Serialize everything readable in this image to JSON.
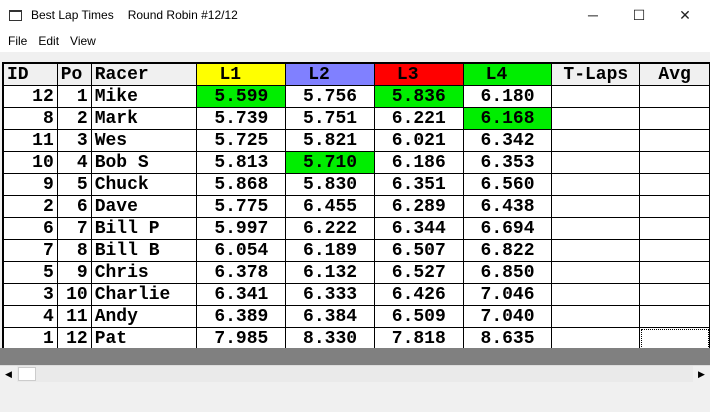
{
  "window": {
    "title": "Best Lap Times",
    "subtitle": "Round Robin #12/12",
    "minimize": "─",
    "maximize": "☐",
    "close": "✕"
  },
  "menu": [
    "File",
    "Edit",
    "View"
  ],
  "colors": {
    "L1": "#ffff00",
    "L2": "#8080ff",
    "L3": "#ff0000",
    "L4": "#00ee00",
    "best": "#00ee00"
  },
  "columns": [
    "ID",
    "Po",
    "Racer",
    "L1",
    "L2",
    "L3",
    "L4",
    "T-Laps",
    "Avg"
  ],
  "rows": [
    {
      "id": "12",
      "pos": "1",
      "racer": "Mike",
      "laps": [
        "5.599",
        "5.756",
        "5.836",
        "6.180"
      ],
      "best": [
        0,
        2
      ]
    },
    {
      "id": "8",
      "pos": "2",
      "racer": "Mark",
      "laps": [
        "5.739",
        "5.751",
        "6.221",
        "6.168"
      ],
      "best": [
        3
      ]
    },
    {
      "id": "11",
      "pos": "3",
      "racer": "Wes",
      "laps": [
        "5.725",
        "5.821",
        "6.021",
        "6.342"
      ],
      "best": []
    },
    {
      "id": "10",
      "pos": "4",
      "racer": "Bob S",
      "laps": [
        "5.813",
        "5.710",
        "6.186",
        "6.353"
      ],
      "best": [
        1
      ]
    },
    {
      "id": "9",
      "pos": "5",
      "racer": "Chuck",
      "laps": [
        "5.868",
        "5.830",
        "6.351",
        "6.560"
      ],
      "best": []
    },
    {
      "id": "2",
      "pos": "6",
      "racer": "Dave",
      "laps": [
        "5.775",
        "6.455",
        "6.289",
        "6.438"
      ],
      "best": []
    },
    {
      "id": "6",
      "pos": "7",
      "racer": "Bill P",
      "laps": [
        "5.997",
        "6.222",
        "6.344",
        "6.694"
      ],
      "best": []
    },
    {
      "id": "7",
      "pos": "8",
      "racer": "Bill B",
      "laps": [
        "6.054",
        "6.189",
        "6.507",
        "6.822"
      ],
      "best": []
    },
    {
      "id": "5",
      "pos": "9",
      "racer": "Chris",
      "laps": [
        "6.378",
        "6.132",
        "6.527",
        "6.850"
      ],
      "best": []
    },
    {
      "id": "3",
      "pos": "10",
      "racer": "Charlie",
      "laps": [
        "6.341",
        "6.333",
        "6.426",
        "7.046"
      ],
      "best": []
    },
    {
      "id": "4",
      "pos": "11",
      "racer": "Andy",
      "laps": [
        "6.389",
        "6.384",
        "6.509",
        "7.040"
      ],
      "best": []
    },
    {
      "id": "1",
      "pos": "12",
      "racer": "Pat",
      "laps": [
        "7.985",
        "8.330",
        "7.818",
        "8.635"
      ],
      "best": []
    }
  ]
}
